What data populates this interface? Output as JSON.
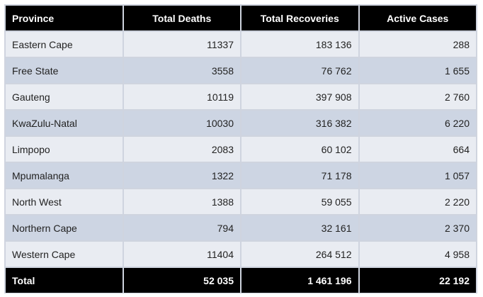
{
  "table": {
    "headers": [
      "Province",
      "Total Deaths",
      "Total Recoveries",
      "Active Cases"
    ],
    "rows": [
      {
        "province": "Eastern Cape",
        "deaths": "11337",
        "recoveries": "183 136",
        "active": "288"
      },
      {
        "province": "Free State",
        "deaths": "3558",
        "recoveries": "76 762",
        "active": "1 655"
      },
      {
        "province": "Gauteng",
        "deaths": "10119",
        "recoveries": "397 908",
        "active": "2 760"
      },
      {
        "province": "KwaZulu-Natal",
        "deaths": "10030",
        "recoveries": "316 382",
        "active": "6 220"
      },
      {
        "province": "Limpopo",
        "deaths": "2083",
        "recoveries": "60 102",
        "active": "664"
      },
      {
        "province": "Mpumalanga",
        "deaths": "1322",
        "recoveries": "71 178",
        "active": "1 057"
      },
      {
        "province": "North West",
        "deaths": "1388",
        "recoveries": "59 055",
        "active": "2 220"
      },
      {
        "province": "Northern Cape",
        "deaths": "794",
        "recoveries": "32 161",
        "active": "2 370"
      },
      {
        "province": "Western Cape",
        "deaths": "11404",
        "recoveries": "264 512",
        "active": "4 958"
      }
    ],
    "total": {
      "label": "Total",
      "deaths": "52 035",
      "recoveries": "1 461 196",
      "active": "22 192"
    }
  },
  "colors": {
    "header_bg": "#000000",
    "header_text": "#ffffff",
    "row_odd": "#e9ecf2",
    "row_even": "#cdd5e3",
    "grid": "#cfd4df"
  }
}
